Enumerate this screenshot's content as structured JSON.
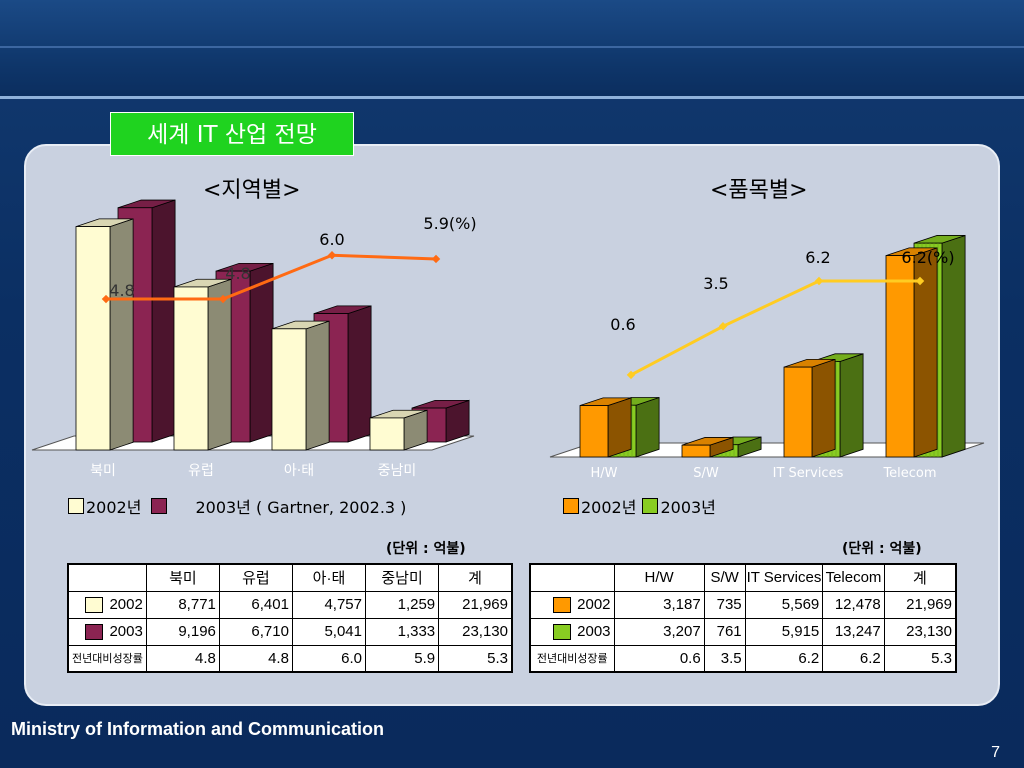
{
  "slide_title": "세계 IT 산업 전망",
  "footer": "Ministry of Information and Communication",
  "page_number": "7",
  "colors": {
    "y2002_region": "#fffcd2",
    "y2003_region": "#8b2452",
    "y2002_item": "#ff9900",
    "y2003_item": "#88cc22",
    "region_line": "#ff6a13",
    "item_line": "#ffcc22",
    "title_bg": "#1fd31f"
  },
  "chart_data": [
    {
      "type": "bar",
      "subtitle": "<지역별>",
      "categories": [
        "북미",
        "유럽",
        "아·태",
        "중남미"
      ],
      "series": [
        {
          "name": "2002년",
          "values": [
            8771,
            6401,
            4757,
            1259
          ]
        },
        {
          "name": "2003년",
          "values": [
            9196,
            6710,
            5041,
            1333
          ]
        }
      ],
      "growth": {
        "values": [
          4.8,
          4.8,
          6.0,
          5.9
        ],
        "labels": [
          "4.8",
          "4.8",
          "6.0",
          "5.9(%)"
        ]
      },
      "legend_2002": "2002년",
      "legend_2003": "2003년 ( Gartner, 2002.3 )",
      "ylim": [
        0,
        9500
      ]
    },
    {
      "type": "bar",
      "subtitle": "<품목별>",
      "categories": [
        "H/W",
        "S/W",
        "IT Services",
        "Telecom"
      ],
      "series": [
        {
          "name": "2002년",
          "values": [
            3187,
            735,
            5569,
            12478
          ]
        },
        {
          "name": "2003년",
          "values": [
            3207,
            761,
            5915,
            13247
          ]
        }
      ],
      "growth": {
        "values": [
          0.6,
          3.5,
          6.2,
          6.2
        ],
        "labels": [
          "0.6",
          "3.5",
          "6.2",
          "6.2(%)"
        ]
      },
      "legend_2002": "2002년",
      "legend_2003": "2003년",
      "ylim": [
        0,
        14000
      ]
    }
  ],
  "tables": {
    "region": {
      "unit": "(단위 : 억불)",
      "headers": [
        "",
        "북미",
        "유럽",
        "아·태",
        "중남미",
        "계"
      ],
      "rows": [
        {
          "label": "2002",
          "cells": [
            "8,771",
            "6,401",
            "4,757",
            "1,259",
            "21,969"
          ]
        },
        {
          "label": "2003",
          "cells": [
            "9,196",
            "6,710",
            "5,041",
            "1,333",
            "23,130"
          ]
        },
        {
          "label": "전년대비성장률",
          "cells": [
            "4.8",
            "4.8",
            "6.0",
            "5.9",
            "5.3"
          ]
        }
      ]
    },
    "item": {
      "unit": "(단위 : 억불)",
      "headers": [
        "",
        "H/W",
        "S/W",
        "IT Services",
        "Telecom",
        "계"
      ],
      "rows": [
        {
          "label": "2002",
          "cells": [
            "3,187",
            "735",
            "5,569",
            "12,478",
            "21,969"
          ]
        },
        {
          "label": "2003",
          "cells": [
            "3,207",
            "761",
            "5,915",
            "13,247",
            "23,130"
          ]
        },
        {
          "label": "전년대비성장률",
          "cells": [
            "0.6",
            "3.5",
            "6.2",
            "6.2",
            "5.3"
          ]
        }
      ]
    }
  }
}
